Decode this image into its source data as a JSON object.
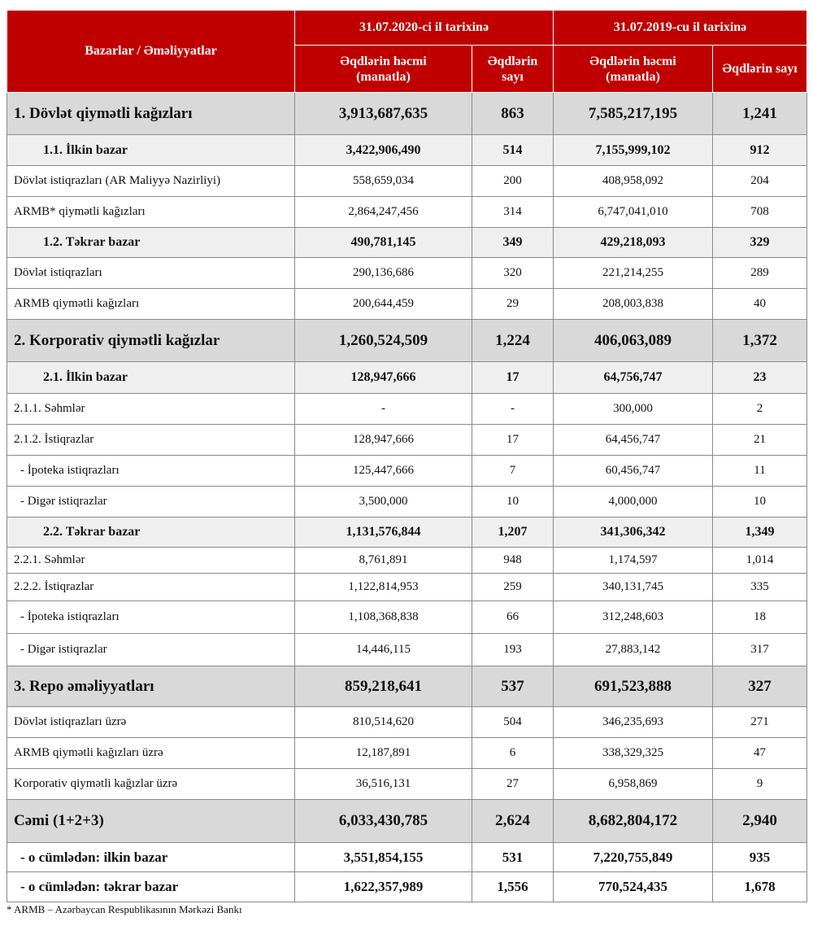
{
  "table": {
    "header": {
      "row_label": "Bazarlar / Əməliyyatlar",
      "periods": [
        "31.07.2020-ci il tarixinə",
        "31.07.2019-cu il tarixinə"
      ],
      "columns": [
        "Əqdlərin həcmi (manatla)",
        "Əqdlərin sayı",
        "Əqdlərin həcmi (manatla)",
        "Əqdlərin sayı"
      ]
    },
    "rows": [
      [
        "1. Dövlət qiymətli kağızları",
        "3,913,687,635",
        "863",
        "7,585,217,195",
        "1,241"
      ],
      [
        "1.1. İlkin bazar",
        "3,422,906,490",
        "514",
        "7,155,999,102",
        "912"
      ],
      [
        "Dövlət istiqrazları (AR Maliyyə Nazirliyi)",
        "558,659,034",
        "200",
        "408,958,092",
        "204"
      ],
      [
        "ARMB* qiymətli kağızları",
        "2,864,247,456",
        "314",
        "6,747,041,010",
        "708"
      ],
      [
        "1.2. Təkrar bazar",
        "490,781,145",
        "349",
        "429,218,093",
        "329"
      ],
      [
        "Dövlət istiqrazları",
        "290,136,686",
        "320",
        "221,214,255",
        "289"
      ],
      [
        "ARMB qiymətli kağızları",
        "200,644,459",
        "29",
        "208,003,838",
        "40"
      ],
      [
        "2. Korporativ qiymətli kağızlar",
        "1,260,524,509",
        "1,224",
        "406,063,089",
        "1,372"
      ],
      [
        "2.1. İlkin bazar",
        "128,947,666",
        "17",
        "64,756,747",
        "23"
      ],
      [
        "2.1.1. Səhmlər",
        "-",
        "-",
        "300,000",
        "2"
      ],
      [
        "2.1.2. İstiqrazlar",
        "128,947,666",
        "17",
        "64,456,747",
        "21"
      ],
      [
        "- İpoteka istiqrazları",
        "125,447,666",
        "7",
        "60,456,747",
        "11"
      ],
      [
        "- Digər istiqrazlar",
        "3,500,000",
        "10",
        "4,000,000",
        "10"
      ],
      [
        "2.2. Təkrar bazar",
        "1,131,576,844",
        "1,207",
        "341,306,342",
        "1,349"
      ],
      [
        "2.2.1. Səhmlər",
        "8,761,891",
        "948",
        "1,174,597",
        "1,014"
      ],
      [
        "2.2.2. İstiqrazlar",
        "1,122,814,953",
        "259",
        "340,131,745",
        "335"
      ],
      [
        "- İpoteka istiqrazları",
        "1,108,368,838",
        "66",
        "312,248,603",
        "18"
      ],
      [
        "- Digər istiqrazlar",
        "14,446,115",
        "193",
        "27,883,142",
        "317"
      ],
      [
        "3. Repo əməliyyatları",
        "859,218,641",
        "537",
        "691,523,888",
        "327"
      ],
      [
        "Dövlət istiqrazları üzrə",
        "810,514,620",
        "504",
        "346,235,693",
        "271"
      ],
      [
        "ARMB qiymətli kağızları üzrə",
        "12,187,891",
        "6",
        "338,329,325",
        "47"
      ],
      [
        "Korporativ qiymətli kağızlar üzrə",
        "36,516,131",
        "27",
        "6,958,869",
        "9"
      ],
      [
        "Cəmi (1+2+3)",
        "6,033,430,785",
        "2,624",
        "8,682,804,172",
        "2,940"
      ],
      [
        "- o cümlədən: ilkin bazar",
        "3,551,854,155",
        "531",
        "7,220,755,849",
        "935"
      ],
      [
        "- o cümlədən: təkrar bazar",
        "1,622,357,989",
        "1,556",
        "770,524,435",
        "1,678"
      ]
    ]
  },
  "footnote": "* ARMB – Azərbaycan Respublikasının Mərkəzi Bankı"
}
